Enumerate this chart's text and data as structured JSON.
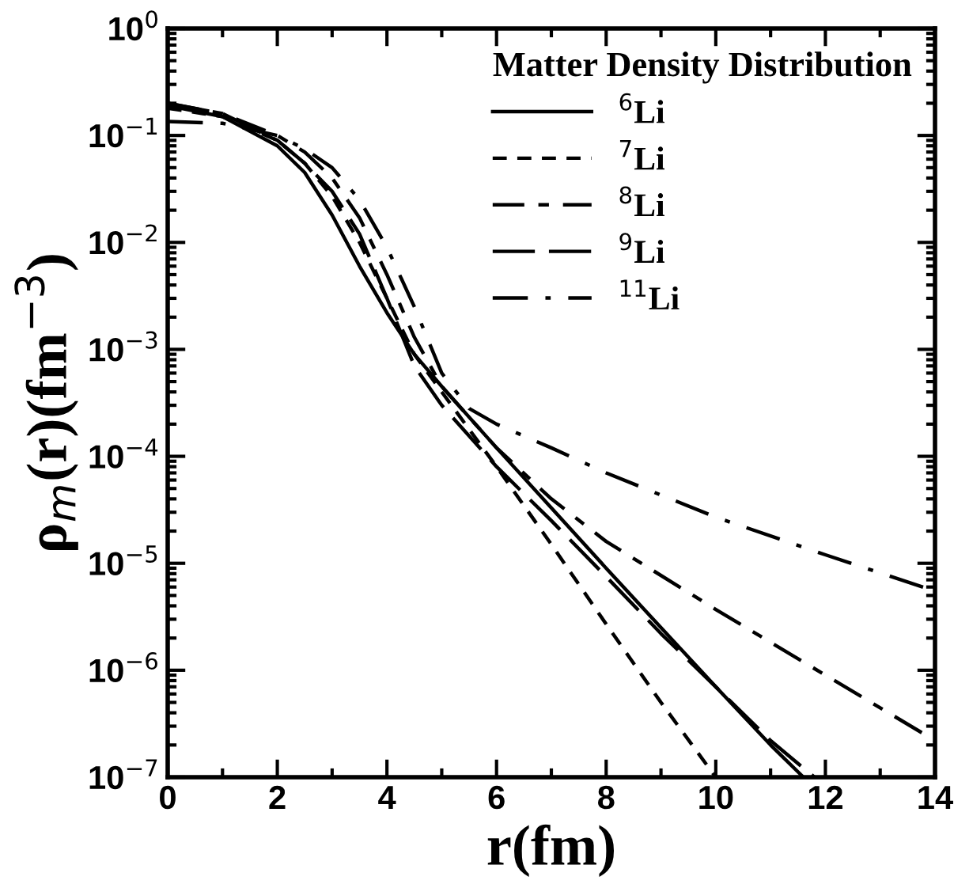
{
  "chart_data": {
    "type": "line",
    "xlabel": "r(fm)",
    "ylabel": "ρ$_{m}$(r)(fm$^{−3}$)",
    "legend_title": "Matter Density Distribution",
    "legend": "top right",
    "log": "y",
    "grid": false,
    "marker": "none",
    "xlim": [
      0,
      14
    ],
    "xticks": [
      0,
      2,
      4,
      6,
      8,
      10,
      12,
      14
    ],
    "ylim": [
      1e-07,
      1
    ],
    "yticks": [
      {
        "value": 1e-07,
        "label": "10$^{−7}$"
      },
      {
        "value": 1e-06,
        "label": "10$^{−6}$"
      },
      {
        "value": 1e-05,
        "label": "10$^{−5}$"
      },
      {
        "value": 0.0001,
        "label": "10$^{−4}$"
      },
      {
        "value": 0.001,
        "label": "10$^{−3}$"
      },
      {
        "value": 0.01,
        "label": "10$^{−2}$"
      },
      {
        "value": 0.1,
        "label": "10$^{−1}$"
      },
      {
        "value": 1,
        "label": "10$^{0}$"
      }
    ],
    "series": [
      {
        "name": "$^{6}$Li",
        "color": "#000000",
        "line_style": "solid",
        "x": [
          0,
          1,
          2,
          2.5,
          3,
          3.5,
          4,
          4.5,
          5,
          6,
          7,
          8,
          9,
          10,
          11,
          11.6
        ],
        "values": [
          0.19,
          0.15,
          0.08,
          0.045,
          0.018,
          0.006,
          0.0022,
          0.0009,
          0.00045,
          0.00012,
          3.3e-05,
          9e-06,
          2.5e-06,
          7e-07,
          2e-07,
          1e-07
        ]
      },
      {
        "name": "$^{7}$Li",
        "color": "#000000",
        "line_style": "dashed",
        "x": [
          0,
          1,
          2,
          2.5,
          3,
          3.5,
          4,
          4.5,
          5,
          6,
          7,
          8,
          9,
          10
        ],
        "values": [
          0.18,
          0.15,
          0.09,
          0.055,
          0.027,
          0.01,
          0.003,
          0.0009,
          0.0004,
          8e-05,
          1.5e-05,
          2.7e-06,
          5e-07,
          1e-07
        ]
      },
      {
        "name": "$^{8}$Li",
        "color": "#000000",
        "line_style": "dashdashed",
        "x": [
          0,
          1,
          2,
          2.5,
          3,
          3.5,
          4,
          4.5,
          5,
          6,
          7,
          8,
          10,
          12,
          14
        ],
        "values": [
          0.2,
          0.16,
          0.1,
          0.07,
          0.04,
          0.017,
          0.005,
          0.0013,
          0.00045,
          0.00012,
          4e-05,
          1.6e-05,
          3.7e-06,
          9e-07,
          2.2e-07
        ]
      },
      {
        "name": "$^{9}$Li",
        "color": "#000000",
        "line_style": "longdash",
        "x": [
          0,
          1,
          2,
          2.5,
          3,
          3.5,
          4,
          4.5,
          5,
          6,
          7,
          8,
          9,
          10,
          11,
          11.8
        ],
        "values": [
          0.2,
          0.16,
          0.09,
          0.055,
          0.03,
          0.012,
          0.003,
          0.0007,
          0.0003,
          8e-05,
          2.5e-05,
          7.5e-06,
          2.2e-06,
          7e-07,
          2.2e-07,
          1e-07
        ]
      },
      {
        "name": "$^{11}$Li",
        "color": "#000000",
        "line_style": "dashdot",
        "x": [
          0,
          1,
          2,
          2.5,
          3,
          3.5,
          4,
          4.5,
          5,
          5.5,
          6,
          7,
          8,
          10,
          12,
          14
        ],
        "values": [
          0.135,
          0.13,
          0.1,
          0.075,
          0.05,
          0.025,
          0.009,
          0.0025,
          0.0006,
          0.00028,
          0.0002,
          0.00012,
          7e-05,
          2.7e-05,
          1.2e-05,
          5.5e-06
        ]
      }
    ]
  }
}
